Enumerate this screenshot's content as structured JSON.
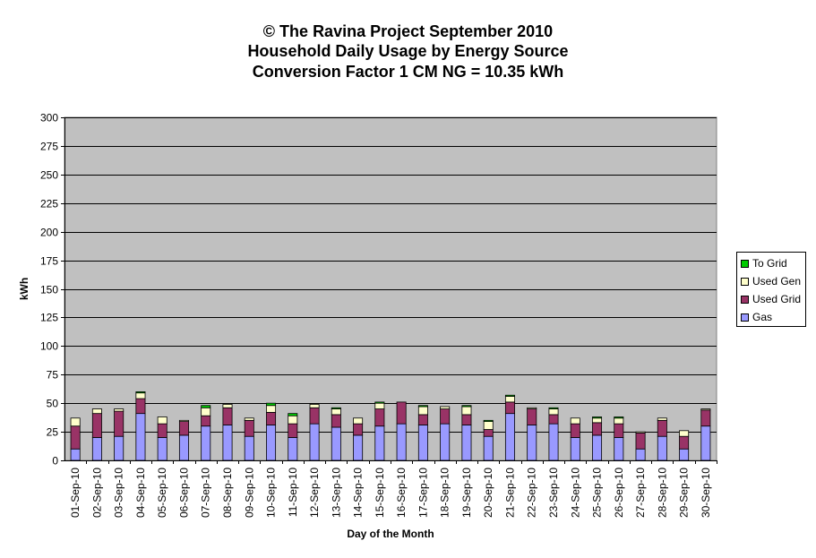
{
  "title": {
    "line1": "© The Ravina Project September 2010",
    "line2": "Household Daily Usage by Energy Source",
    "line3": "Conversion Factor 1 CM NG = 10.35 kWh"
  },
  "colors": {
    "plot_bg": "#c0c0c0",
    "gas": "#9999ff",
    "used_grid": "#993366",
    "used_gen": "#ffffcc",
    "to_grid": "#00cc00"
  },
  "legend": [
    {
      "label": "To Grid",
      "color": "#00cc00"
    },
    {
      "label": "Used Gen",
      "color": "#ffffcc"
    },
    {
      "label": "Used Grid",
      "color": "#993366"
    },
    {
      "label": "Gas",
      "color": "#9999ff"
    }
  ],
  "chart_data": {
    "type": "bar",
    "stacked": true,
    "xlabel": "Day of the Month",
    "ylabel": "kWh",
    "ylim": [
      0,
      300
    ],
    "yticks": [
      0,
      25,
      50,
      75,
      100,
      125,
      150,
      175,
      200,
      225,
      250,
      275,
      300
    ],
    "grid": true,
    "legend_position": "right",
    "categories": [
      "01-Sep-10",
      "02-Sep-10",
      "03-Sep-10",
      "04-Sep-10",
      "05-Sep-10",
      "06-Sep-10",
      "07-Sep-10",
      "08-Sep-10",
      "09-Sep-10",
      "10-Sep-10",
      "11-Sep-10",
      "12-Sep-10",
      "13-Sep-10",
      "14-Sep-10",
      "15-Sep-10",
      "16-Sep-10",
      "17-Sep-10",
      "18-Sep-10",
      "19-Sep-10",
      "20-Sep-10",
      "21-Sep-10",
      "22-Sep-10",
      "23-Sep-10",
      "24-Sep-10",
      "25-Sep-10",
      "26-Sep-10",
      "27-Sep-10",
      "28-Sep-10",
      "29-Sep-10",
      "30-Sep-10"
    ],
    "series": [
      {
        "name": "Gas",
        "values": [
          10,
          20,
          21,
          41,
          20,
          22,
          30,
          31,
          21,
          31,
          20,
          32,
          29,
          22,
          30,
          32,
          31,
          32,
          31,
          21,
          41,
          31,
          32,
          20,
          22,
          20,
          10,
          21,
          10,
          30
        ]
      },
      {
        "name": "Used Grid",
        "values": [
          20,
          21,
          22,
          13,
          12,
          12,
          9,
          15,
          14,
          11,
          12,
          14,
          11,
          10,
          15,
          19,
          9,
          13,
          9,
          6,
          10,
          14,
          8,
          12,
          11,
          12,
          14,
          14,
          11,
          14
        ]
      },
      {
        "name": "Used Gen",
        "values": [
          7,
          4,
          2,
          5,
          6,
          1,
          7,
          3,
          2,
          6,
          7,
          3,
          5,
          5,
          5,
          0,
          7,
          2,
          7,
          7,
          5,
          1,
          5,
          5,
          4,
          5,
          1,
          2,
          5,
          1
        ]
      },
      {
        "name": "To Grid",
        "values": [
          0,
          0,
          0,
          1,
          0,
          0,
          2,
          0,
          0,
          2,
          2,
          0,
          1,
          0,
          1,
          0,
          1,
          0,
          1,
          1,
          1,
          0,
          1,
          0,
          1,
          1,
          0,
          0,
          0,
          0
        ]
      }
    ]
  }
}
